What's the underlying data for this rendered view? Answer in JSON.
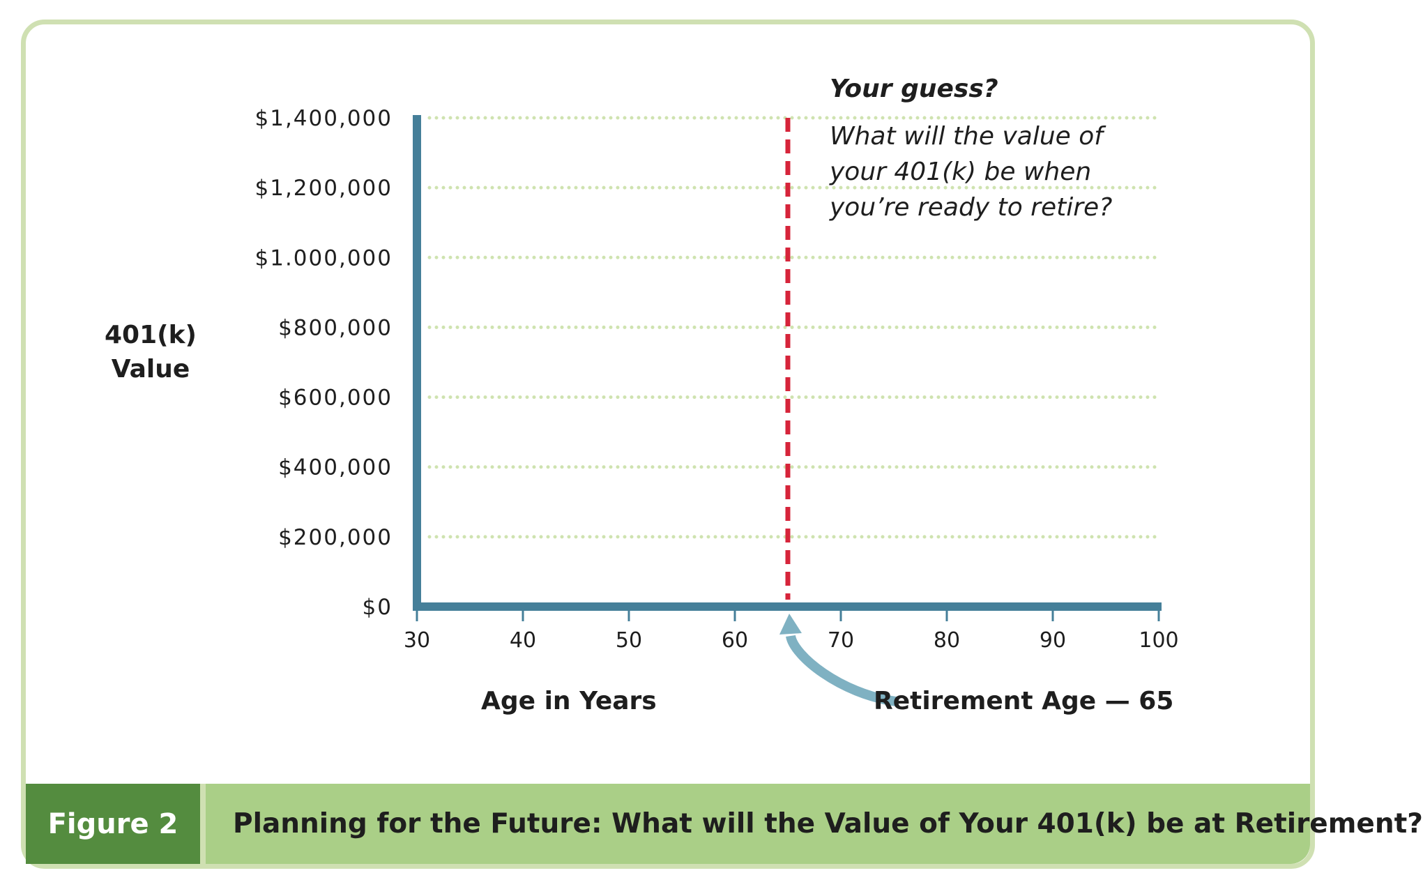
{
  "chart_data": {
    "type": "line",
    "x_ticks": [
      30,
      40,
      50,
      60,
      70,
      80,
      90,
      100
    ],
    "y_tick_labels": [
      "$0",
      "$200,000",
      "$400,000",
      "$600,000",
      "$800,000",
      "$1.000,000",
      "$1,200,000",
      "$1,400,000"
    ],
    "y_tick_values": [
      0,
      200000,
      400000,
      600000,
      800000,
      1000000,
      1200000,
      1400000
    ],
    "xlim": [
      30,
      100
    ],
    "ylim": [
      0,
      1400000
    ],
    "xlabel": "Age in Years",
    "ylabel": "401(k) Value",
    "grid": true,
    "series": [],
    "reference_line": {
      "x": 65,
      "label": "Retirement Age — 65"
    },
    "annotation": {
      "title": "Your guess?",
      "text": "What will the value of your 401(k) be when you’re ready to retire?"
    }
  },
  "figure": {
    "label": "Figure 2",
    "title": "Planning for the Future:  What will the Value of Your 401(k) be at Retirement?"
  },
  "colors": {
    "axis": "#457f99",
    "grid": "#cfe3b0",
    "reference_line": "#d6243a",
    "arrow": "#7fb1c2",
    "caption_bg": "#aacf87",
    "label_bg": "#548c3f",
    "frame": "#cfe0b2"
  }
}
